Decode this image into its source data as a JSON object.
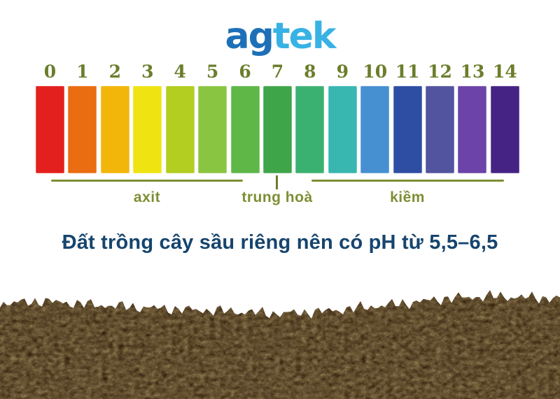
{
  "logo": {
    "prefix": "ag",
    "suffix": "tek",
    "prefix_color": "#1d70b7",
    "suffix_color": "#38b2e4"
  },
  "ph_scale": {
    "bars": [
      {
        "value": "0",
        "color": "#e3201d"
      },
      {
        "value": "1",
        "color": "#ea6d12"
      },
      {
        "value": "2",
        "color": "#f2b50a"
      },
      {
        "value": "3",
        "color": "#f0e312"
      },
      {
        "value": "4",
        "color": "#b3cd21"
      },
      {
        "value": "5",
        "color": "#8ac541"
      },
      {
        "value": "6",
        "color": "#5eb747"
      },
      {
        "value": "7",
        "color": "#3fa549"
      },
      {
        "value": "8",
        "color": "#3bb171"
      },
      {
        "value": "9",
        "color": "#38b7b1"
      },
      {
        "value": "10",
        "color": "#4690d2"
      },
      {
        "value": "11",
        "color": "#2e4ea4"
      },
      {
        "value": "12",
        "color": "#52549f"
      },
      {
        "value": "13",
        "color": "#6c43a8"
      },
      {
        "value": "14",
        "color": "#452384"
      }
    ],
    "zones": {
      "acid": "axit",
      "neutral": "trung hoà",
      "alkaline": "kiềm"
    },
    "number_color": "#6b7e2c",
    "zone_label_color": "#7d8f35"
  },
  "caption": {
    "text": "Đất trồng cây sầu riêng nên có pH từ 5,5–6,5",
    "color": "#16456e"
  },
  "soil_colors": {
    "base": "#2a1808",
    "grain": "#5c4220",
    "speck": "#140c03"
  }
}
